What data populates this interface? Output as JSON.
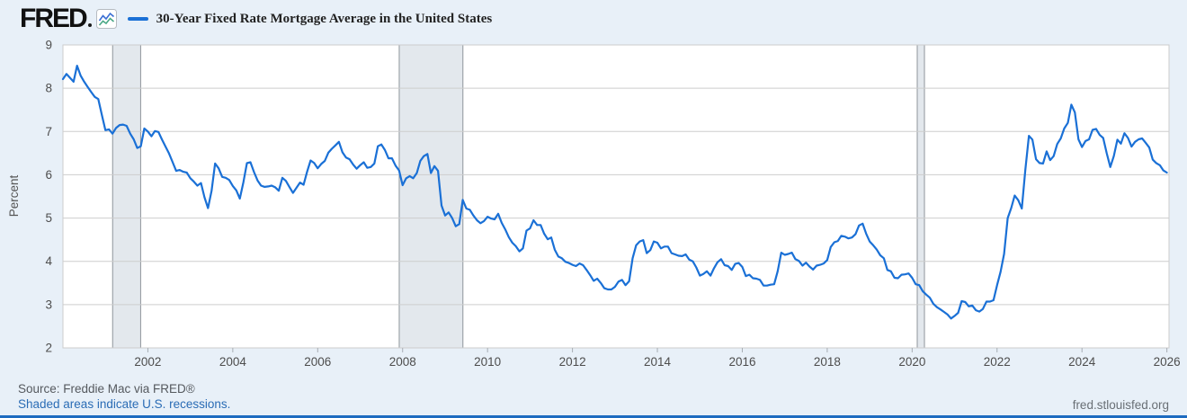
{
  "header": {
    "logo_text": "FRED",
    "series_title": "30-Year Fixed Rate Mortgage Average in the United States"
  },
  "footer": {
    "source": "Source: Freddie Mac via FRED®",
    "recession_note": "Shaded areas indicate U.S. recessions.",
    "site_link": "fred.stlouisfed.org"
  },
  "colors": {
    "series_line": "#1a70d6",
    "background": "#e8f0f8",
    "plot_background": "#ffffff",
    "gridline": "#cdcdcd",
    "tick_mark": "#a7adb3",
    "recession_band_fill": "#e3e8ed",
    "recession_band_edge": "#8f959b",
    "link_blue": "#2a6cb5",
    "bottom_bar": "#1d6bc0",
    "text_gray": "#4d4d4d"
  },
  "chart_data": {
    "type": "line",
    "title": "30-Year Fixed Rate Mortgage Average in the United States",
    "xlabel": "",
    "ylabel": "Percent",
    "y_ticks": [
      2,
      3,
      4,
      5,
      6,
      7,
      8,
      9
    ],
    "y_range": [
      2,
      9
    ],
    "x_ticks": [
      2002,
      2004,
      2006,
      2008,
      2010,
      2012,
      2014,
      2016,
      2018,
      2020,
      2022,
      2024,
      2026
    ],
    "x_range": [
      2000.0,
      2026.05
    ],
    "grid": "horizontal",
    "legend_position": "top-left",
    "recessions": [
      {
        "start": 2001.17,
        "end": 2001.83
      },
      {
        "start": 2007.92,
        "end": 2009.42
      },
      {
        "start": 2020.12,
        "end": 2020.29
      }
    ],
    "series": [
      {
        "name": "30-Year Fixed Rate Mortgage Average in the United States",
        "units": "Percent",
        "frequency": "monthly",
        "start_year": 2000,
        "values": [
          8.21,
          8.33,
          8.24,
          8.15,
          8.52,
          8.29,
          8.15,
          8.03,
          7.91,
          7.8,
          7.75,
          7.38,
          7.03,
          7.05,
          6.95,
          7.08,
          7.15,
          7.16,
          7.13,
          6.95,
          6.82,
          6.62,
          6.66,
          7.07,
          7.0,
          6.89,
          7.01,
          6.99,
          6.81,
          6.65,
          6.49,
          6.29,
          6.09,
          6.11,
          6.07,
          6.05,
          5.92,
          5.84,
          5.75,
          5.81,
          5.48,
          5.23,
          5.63,
          6.26,
          6.15,
          5.95,
          5.93,
          5.88,
          5.74,
          5.64,
          5.45,
          5.83,
          6.27,
          6.29,
          6.06,
          5.87,
          5.75,
          5.72,
          5.73,
          5.75,
          5.71,
          5.63,
          5.93,
          5.86,
          5.72,
          5.58,
          5.7,
          5.82,
          5.77,
          6.07,
          6.33,
          6.27,
          6.15,
          6.25,
          6.32,
          6.51,
          6.6,
          6.68,
          6.76,
          6.52,
          6.4,
          6.36,
          6.24,
          6.14,
          6.22,
          6.29,
          6.16,
          6.18,
          6.26,
          6.66,
          6.7,
          6.57,
          6.38,
          6.38,
          6.21,
          6.1,
          5.76,
          5.92,
          5.97,
          5.92,
          6.04,
          6.32,
          6.43,
          6.48,
          6.04,
          6.2,
          6.09,
          5.29,
          5.06,
          5.13,
          5.0,
          4.81,
          4.86,
          5.42,
          5.22,
          5.19,
          5.06,
          4.95,
          4.88,
          4.93,
          5.03,
          4.99,
          4.97,
          5.1,
          4.89,
          4.74,
          4.56,
          4.43,
          4.35,
          4.23,
          4.3,
          4.71,
          4.76,
          4.95,
          4.84,
          4.84,
          4.64,
          4.51,
          4.55,
          4.27,
          4.11,
          4.07,
          3.99,
          3.96,
          3.92,
          3.89,
          3.95,
          3.91,
          3.8,
          3.68,
          3.55,
          3.6,
          3.5,
          3.38,
          3.35,
          3.35,
          3.41,
          3.53,
          3.57,
          3.45,
          3.54,
          4.07,
          4.37,
          4.46,
          4.49,
          4.19,
          4.26,
          4.46,
          4.43,
          4.3,
          4.34,
          4.34,
          4.19,
          4.16,
          4.13,
          4.12,
          4.16,
          4.04,
          4.0,
          3.86,
          3.67,
          3.71,
          3.77,
          3.67,
          3.84,
          3.98,
          4.05,
          3.91,
          3.89,
          3.8,
          3.94,
          3.96,
          3.87,
          3.66,
          3.69,
          3.61,
          3.6,
          3.57,
          3.44,
          3.44,
          3.46,
          3.47,
          3.77,
          4.2,
          4.15,
          4.17,
          4.2,
          4.05,
          4.01,
          3.9,
          3.97,
          3.88,
          3.81,
          3.9,
          3.92,
          3.95,
          4.03,
          4.33,
          4.44,
          4.47,
          4.59,
          4.57,
          4.53,
          4.55,
          4.63,
          4.83,
          4.87,
          4.64,
          4.46,
          4.37,
          4.27,
          4.14,
          4.07,
          3.8,
          3.77,
          3.62,
          3.61,
          3.69,
          3.7,
          3.72,
          3.62,
          3.47,
          3.45,
          3.31,
          3.23,
          3.16,
          3.02,
          2.94,
          2.89,
          2.83,
          2.77,
          2.68,
          2.74,
          2.81,
          3.08,
          3.06,
          2.96,
          2.98,
          2.87,
          2.84,
          2.9,
          3.07,
          3.07,
          3.1,
          3.45,
          3.76,
          4.17,
          5.0,
          5.23,
          5.52,
          5.41,
          5.22,
          6.11,
          6.9,
          6.81,
          6.36,
          6.27,
          6.26,
          6.54,
          6.34,
          6.43,
          6.71,
          6.84,
          7.07,
          7.2,
          7.62,
          7.44,
          6.82,
          6.64,
          6.78,
          6.82,
          7.04,
          7.06,
          6.92,
          6.85,
          6.5,
          6.18,
          6.43,
          6.81,
          6.72,
          6.96,
          6.85,
          6.65,
          6.76,
          6.82,
          6.84,
          6.74,
          6.63,
          6.35,
          6.27,
          6.22,
          6.1,
          6.05
        ]
      }
    ]
  }
}
